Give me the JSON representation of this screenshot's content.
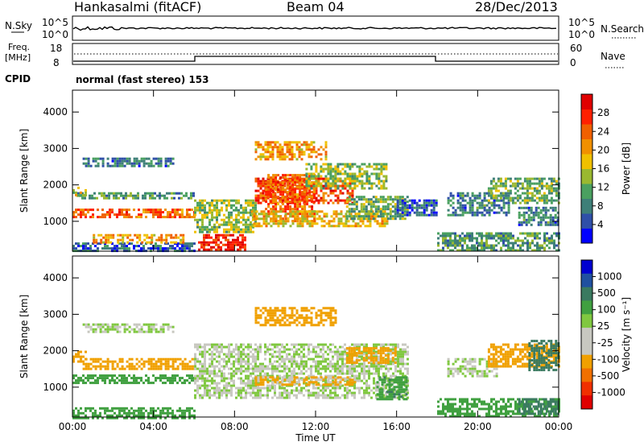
{
  "header": {
    "station": "Hankasalmi (fitACF)",
    "beam": "Beam 04",
    "date": "28/Dec/2013"
  },
  "strip_labels": {
    "nsky": "N.Sky",
    "nsearch": "N.Search",
    "freq_line1": "Freq.",
    "freq_line2": "[MHz]",
    "nave": "Nave",
    "cpid": "CPID",
    "cpid_value": "normal (fast stereo) 153"
  },
  "strip_ticks": {
    "noise_left": [
      "10^5",
      "10^0"
    ],
    "noise_right": [
      "10^5",
      "10^0"
    ],
    "freq_left": [
      "18",
      "8"
    ],
    "freq_right": [
      "60",
      "0"
    ]
  },
  "colors": {
    "power_scale": [
      "#0000ff",
      "#2f4fa8",
      "#3e7f78",
      "#4aa060",
      "#9ab830",
      "#f0c000",
      "#f09000",
      "#f06000",
      "#ff2000",
      "#e00000"
    ],
    "velocity_scale": [
      "#e00000",
      "#f03000",
      "#f07000",
      "#f0a000",
      "#c8c8c0",
      "#c8c8c0",
      "#80c840",
      "#40a040",
      "#3a7a60",
      "#2050a0",
      "#0000d0"
    ]
  },
  "chart_data": [
    {
      "type": "heatmap",
      "name": "power-panel",
      "ylabel": "Slant Range [km]",
      "xlabel": "",
      "x_ticks": [
        "00:00",
        "04:00",
        "08:00",
        "12:00",
        "16:00",
        "20:00",
        "00:00"
      ],
      "xlim": [
        0,
        24
      ],
      "ylim": [
        180,
        4600
      ],
      "y_ticks": [
        1000,
        2000,
        3000,
        4000
      ],
      "colorbar": {
        "label": "Power [dB]",
        "ticks": [
          4,
          8,
          12,
          16,
          20,
          24,
          28
        ],
        "range": [
          0,
          32
        ]
      },
      "features": [
        {
          "x": [
            0,
            6.0
          ],
          "y": [
            1150,
            1350
          ],
          "value": 24
        },
        {
          "x": [
            0.2,
            6.0
          ],
          "y": [
            1650,
            1800
          ],
          "value": 10
        },
        {
          "x": [
            0,
            0.6
          ],
          "y": [
            1700,
            1950
          ],
          "value": 16
        },
        {
          "x": [
            0.5,
            5.0
          ],
          "y": [
            2500,
            2750
          ],
          "value": 8
        },
        {
          "x": [
            0,
            6.0
          ],
          "y": [
            180,
            420
          ],
          "value": 6
        },
        {
          "x": [
            1.0,
            5.5
          ],
          "y": [
            450,
            650
          ],
          "value": 20
        },
        {
          "x": [
            6.2,
            8.5
          ],
          "y": [
            200,
            650
          ],
          "value": 28
        },
        {
          "x": [
            6.0,
            9.0
          ],
          "y": [
            700,
            1600
          ],
          "value": 14
        },
        {
          "x": [
            9.0,
            13.8
          ],
          "y": [
            1500,
            2200
          ],
          "value": 26
        },
        {
          "x": [
            9.5,
            12.0
          ],
          "y": [
            1000,
            2300
          ],
          "value": 24
        },
        {
          "x": [
            8.8,
            15.5
          ],
          "y": [
            850,
            1300
          ],
          "value": 18
        },
        {
          "x": [
            13.5,
            16.5
          ],
          "y": [
            1100,
            1700
          ],
          "value": 12
        },
        {
          "x": [
            11.5,
            15.5
          ],
          "y": [
            1900,
            2600
          ],
          "value": 14
        },
        {
          "x": [
            9.0,
            12.5
          ],
          "y": [
            2700,
            3200
          ],
          "value": 20
        },
        {
          "x": [
            16.0,
            18.0
          ],
          "y": [
            1200,
            1600
          ],
          "value": 6
        },
        {
          "x": [
            18.5,
            21.5
          ],
          "y": [
            1200,
            1800
          ],
          "value": 8
        },
        {
          "x": [
            20.5,
            24
          ],
          "y": [
            1500,
            2200
          ],
          "value": 12
        },
        {
          "x": [
            18.0,
            24
          ],
          "y": [
            200,
            700
          ],
          "value": 10
        },
        {
          "x": [
            22.0,
            24
          ],
          "y": [
            900,
            1400
          ],
          "value": 8
        }
      ]
    },
    {
      "type": "heatmap",
      "name": "velocity-panel",
      "ylabel": "Slant Range [km]",
      "xlabel": "Time UT",
      "x_ticks": [
        "00:00",
        "04:00",
        "08:00",
        "12:00",
        "16:00",
        "20:00",
        "00:00"
      ],
      "xlim": [
        0,
        24
      ],
      "ylim": [
        180,
        4600
      ],
      "y_ticks": [
        1000,
        2000,
        3000,
        4000
      ],
      "colorbar": {
        "label": "Velocity [m s⁻¹]",
        "ticks": [
          "1000",
          "500",
          "100",
          "25",
          "-25",
          "-100",
          "-500",
          "-1000"
        ]
      },
      "features": [
        {
          "x": [
            0,
            6.0
          ],
          "y": [
            1150,
            1350
          ],
          "value": 60
        },
        {
          "x": [
            0,
            0.6
          ],
          "y": [
            1700,
            2000
          ],
          "value": -150
        },
        {
          "x": [
            0.5,
            6.0
          ],
          "y": [
            1500,
            1800
          ],
          "value": -150
        },
        {
          "x": [
            0.5,
            5.0
          ],
          "y": [
            2500,
            2750
          ],
          "value": 0
        },
        {
          "x": [
            0,
            6.0
          ],
          "y": [
            180,
            450
          ],
          "value": 60
        },
        {
          "x": [
            6.0,
            16.5
          ],
          "y": [
            700,
            2200
          ],
          "value": 0
        },
        {
          "x": [
            9.0,
            14.0
          ],
          "y": [
            1100,
            1300
          ],
          "value": -120
        },
        {
          "x": [
            13.5,
            16.0
          ],
          "y": [
            1700,
            2100
          ],
          "value": -300
        },
        {
          "x": [
            9.0,
            13.0
          ],
          "y": [
            2700,
            3200
          ],
          "value": -200
        },
        {
          "x": [
            15.0,
            16.5
          ],
          "y": [
            700,
            1300
          ],
          "value": 80
        },
        {
          "x": [
            18.5,
            21.0
          ],
          "y": [
            1300,
            1800
          ],
          "value": 0
        },
        {
          "x": [
            20.5,
            24
          ],
          "y": [
            1600,
            2200
          ],
          "value": -150
        },
        {
          "x": [
            22.5,
            24
          ],
          "y": [
            1500,
            2300
          ],
          "value": 300
        },
        {
          "x": [
            18.0,
            24
          ],
          "y": [
            200,
            700
          ],
          "value": 60
        },
        {
          "x": [
            22.0,
            24
          ],
          "y": [
            300,
            700
          ],
          "value": 150
        }
      ]
    }
  ]
}
